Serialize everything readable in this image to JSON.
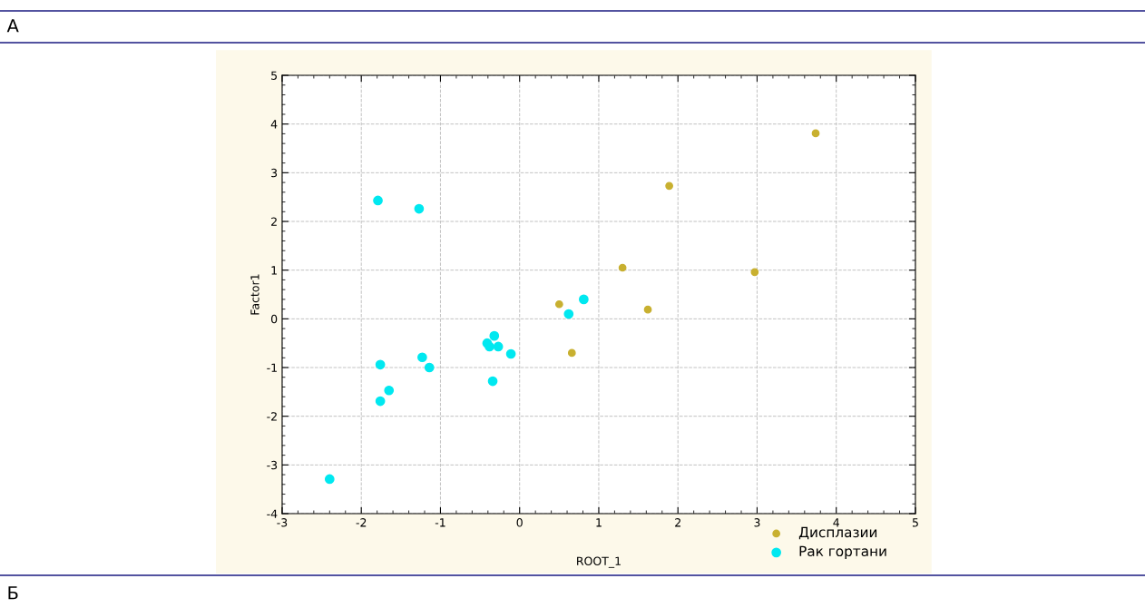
{
  "chart_data": {
    "type": "scatter",
    "xlabel": "ROOT_1",
    "ylabel": "Factor1",
    "annotations": [
      "А",
      "Б"
    ],
    "series": [
      {
        "name": "Дисплазии",
        "color": "#c8b030",
        "x": [
          3.74,
          1.89,
          1.3,
          2.97,
          1.62,
          0.5,
          0.66
        ],
        "values": [
          3.81,
          2.73,
          1.05,
          0.96,
          0.19,
          0.3,
          -0.7
        ]
      },
      {
        "name": "Рак гортани",
        "color": "#00e8f0",
        "x": [
          -1.79,
          -1.27,
          0.81,
          0.62,
          -0.32,
          -0.41,
          -0.38,
          -0.27,
          -0.11,
          -1.23,
          -1.14,
          -1.76,
          -1.65,
          -1.76,
          -0.34,
          -2.4
        ],
        "values": [
          2.43,
          2.26,
          0.4,
          0.1,
          -0.35,
          -0.5,
          -0.57,
          -0.57,
          -0.72,
          -0.79,
          -1.0,
          -0.94,
          -1.47,
          -1.69,
          -1.28,
          -3.29
        ]
      }
    ],
    "xlim": [
      -3,
      5
    ],
    "xticks": [
      -3,
      -2,
      -1,
      0,
      1,
      2,
      3,
      4,
      5
    ],
    "ylim": [
      -4,
      5
    ],
    "yticks": [
      -4,
      -3,
      -2,
      -1,
      0,
      1,
      2,
      3,
      4,
      5
    ],
    "grid": true,
    "legend": "bottom right",
    "marker": "circle"
  }
}
